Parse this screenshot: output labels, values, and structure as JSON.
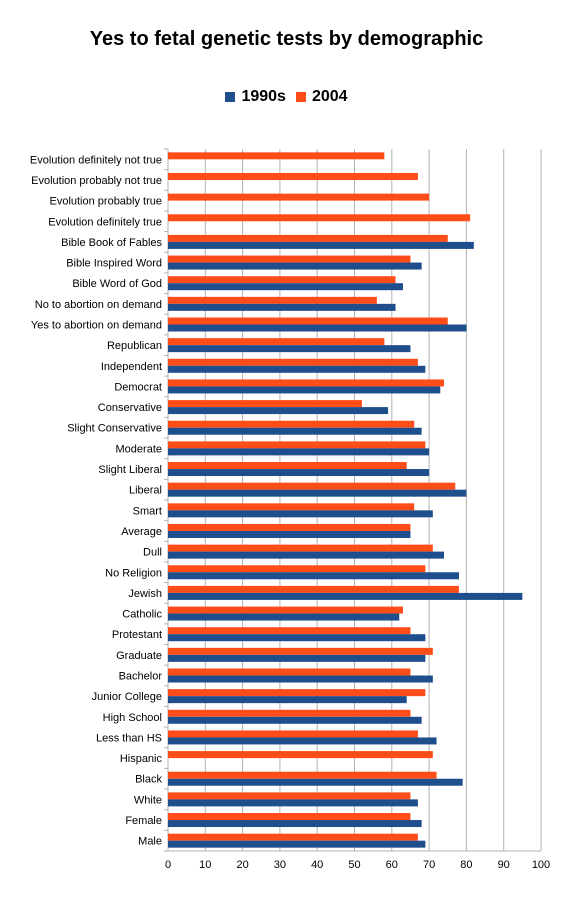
{
  "chart_data": {
    "type": "bar",
    "orientation": "horizontal",
    "title": "Yes to fetal genetic tests by demographic",
    "xlabel": "",
    "ylabel": "",
    "xlim": [
      0,
      100
    ],
    "xticks": [
      0,
      10,
      20,
      30,
      40,
      50,
      60,
      70,
      80,
      90,
      100
    ],
    "grid": true,
    "legend_position": "top",
    "categories": [
      "Evolution definitely not true",
      "Evolution probably not true",
      "Evolution probably true",
      "Evolution definitely true",
      "Bible Book of Fables",
      "Bible Inspired Word",
      "Bible Word of God",
      "No to abortion on demand",
      "Yes to abortion on demand",
      "Republican",
      "Independent",
      "Democrat",
      "Conservative",
      "Slight Conservative",
      "Moderate",
      "Slight Liberal",
      "Liberal",
      "Smart",
      "Average",
      "Dull",
      "No Religion",
      "Jewish",
      "Catholic",
      "Protestant",
      "Graduate",
      "Bachelor",
      "Junior College",
      "High School",
      "Less than HS",
      "Hispanic",
      "Black",
      "White",
      "Female",
      "Male"
    ],
    "series": [
      {
        "name": "1990s",
        "color": "#1f4e8c",
        "values": [
          null,
          null,
          null,
          null,
          82,
          68,
          63,
          61,
          80,
          65,
          69,
          73,
          59,
          68,
          70,
          70,
          80,
          71,
          65,
          74,
          78,
          95,
          62,
          69,
          69,
          71,
          64,
          68,
          72,
          null,
          79,
          67,
          68,
          69
        ]
      },
      {
        "name": "2004",
        "color": "#ff4d1a",
        "values": [
          58,
          67,
          70,
          81,
          75,
          65,
          61,
          56,
          75,
          58,
          67,
          74,
          52,
          66,
          69,
          64,
          77,
          66,
          65,
          71,
          69,
          78,
          63,
          65,
          71,
          65,
          69,
          65,
          67,
          71,
          72,
          65,
          65,
          67
        ]
      }
    ]
  }
}
